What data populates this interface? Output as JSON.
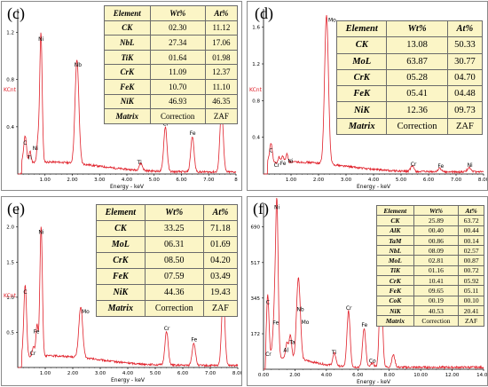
{
  "chart_data": [
    {
      "id": "c",
      "type": "line",
      "panel_label": "(c)",
      "y_unit_label": "KCnt",
      "xlabel": "Energy - keV",
      "xlim": [
        0,
        8.0
      ],
      "ylim": [
        0,
        1.4
      ],
      "x_ticks": [
        "1.00",
        "2.00",
        "3.00",
        "4.00",
        "5.00",
        "6.00",
        "7.00",
        "8"
      ],
      "y_ticks": [
        "0.4",
        "0.8",
        "1.2"
      ],
      "y_tick_values": [
        0.4,
        0.8,
        1.2
      ],
      "peaks": [
        {
          "label": "C",
          "x": 0.27,
          "y": 0.22,
          "w": 0.05
        },
        {
          "label": "Ti",
          "x": 0.45,
          "y": 0.1,
          "w": 0.04
        },
        {
          "label": "Ni",
          "x": 0.85,
          "y": 1.1,
          "w": 0.045
        },
        {
          "label": "Ni",
          "x": 0.74,
          "y": 0.18,
          "w": 0.04
        },
        {
          "label": "Nb",
          "x": 2.17,
          "y": 0.88,
          "w": 0.07
        },
        {
          "label": "Ti",
          "x": 4.51,
          "y": 0.06,
          "w": 0.06
        },
        {
          "label": "Cr",
          "x": 5.41,
          "y": 0.38,
          "w": 0.06
        },
        {
          "label": "Fe",
          "x": 6.4,
          "y": 0.3,
          "w": 0.06
        },
        {
          "label": "Ni",
          "x": 7.47,
          "y": 0.55,
          "w": 0.06
        }
      ],
      "table": {
        "headers": [
          "Element",
          "Wt%",
          "At%"
        ],
        "rows": [
          [
            "CK",
            "02.30",
            "11.12"
          ],
          [
            "NbL",
            "27.34",
            "17.06"
          ],
          [
            "TiK",
            "01.64",
            "01.98"
          ],
          [
            "CrK",
            "11.09",
            "12.37"
          ],
          [
            "FeK",
            "10.70",
            "11.10"
          ],
          [
            "NiK",
            "46.93",
            "46.35"
          ],
          [
            "Matrix",
            "Correction",
            "ZAF"
          ]
        ]
      }
    },
    {
      "id": "d",
      "type": "line",
      "panel_label": "(d)",
      "y_unit_label": "KCnt",
      "xlabel": "Energy - keV",
      "xlim": [
        0,
        8.0
      ],
      "ylim": [
        0,
        1.8
      ],
      "x_ticks": [
        "1.00",
        "2.00",
        "3.00",
        "4.00",
        "5.00",
        "6.00",
        "7.00",
        "8.00"
      ],
      "y_ticks": [
        "0.4",
        "0.8",
        "1.2",
        "1.6"
      ],
      "y_tick_values": [
        0.4,
        0.8,
        1.2,
        1.6
      ],
      "peaks": [
        {
          "label": "C",
          "x": 0.27,
          "y": 0.2,
          "w": 0.05
        },
        {
          "label": "Cr",
          "x": 0.57,
          "y": 0.06,
          "w": 0.04
        },
        {
          "label": "Fe",
          "x": 0.7,
          "y": 0.07,
          "w": 0.04
        },
        {
          "label": "Ni",
          "x": 0.85,
          "y": 0.09,
          "w": 0.04
        },
        {
          "label": "Mo",
          "x": 2.29,
          "y": 1.62,
          "w": 0.07
        },
        {
          "label": "Cr",
          "x": 5.41,
          "y": 0.06,
          "w": 0.06
        },
        {
          "label": "Fe",
          "x": 6.4,
          "y": 0.04,
          "w": 0.06
        },
        {
          "label": "Ni",
          "x": 7.47,
          "y": 0.05,
          "w": 0.06
        }
      ],
      "table": {
        "headers": [
          "Element",
          "Wt%",
          "At%"
        ],
        "rows": [
          [
            "CK",
            "13.08",
            "50.33"
          ],
          [
            "MoL",
            "63.87",
            "30.77"
          ],
          [
            "CrK",
            "05.28",
            "04.70"
          ],
          [
            "FeK",
            "05.41",
            "04.48"
          ],
          [
            "NiK",
            "12.36",
            "09.73"
          ],
          [
            "Matrix",
            "Correction",
            "ZAF"
          ]
        ]
      }
    },
    {
      "id": "e",
      "type": "line",
      "panel_label": "(e)",
      "y_unit_label": "KCnt",
      "xlabel": "Energy - keV",
      "xlim": [
        0,
        8.0
      ],
      "ylim": [
        0,
        2.3
      ],
      "x_ticks": [
        "1.00",
        "2.00",
        "3.00",
        "4.00",
        "5.00",
        "6.00",
        "7.00",
        "8.00"
      ],
      "y_ticks": [
        "0.5",
        "1.0",
        "1.5",
        "2.0"
      ],
      "y_tick_values": [
        0.5,
        1.0,
        1.5,
        2.0
      ],
      "peaks": [
        {
          "label": "C",
          "x": 0.27,
          "y": 1.0,
          "w": 0.05
        },
        {
          "label": "Cr",
          "x": 0.57,
          "y": 0.15,
          "w": 0.04
        },
        {
          "label": "Fe",
          "x": 0.7,
          "y": 0.45,
          "w": 0.04
        },
        {
          "label": "Ni",
          "x": 0.85,
          "y": 1.85,
          "w": 0.045
        },
        {
          "label": "Mo",
          "x": 2.29,
          "y": 0.72,
          "w": 0.07
        },
        {
          "label": "Cr",
          "x": 5.41,
          "y": 0.48,
          "w": 0.06
        },
        {
          "label": "Fe",
          "x": 6.4,
          "y": 0.32,
          "w": 0.06
        },
        {
          "label": "Ni",
          "x": 7.47,
          "y": 1.0,
          "w": 0.06
        }
      ],
      "table": {
        "headers": [
          "Element",
          "Wt%",
          "At%"
        ],
        "rows": [
          [
            "CK",
            "33.25",
            "71.18"
          ],
          [
            "MoL",
            "06.31",
            "01.69"
          ],
          [
            "CrK",
            "08.50",
            "04.20"
          ],
          [
            "FeK",
            "07.59",
            "03.49"
          ],
          [
            "NiK",
            "44.36",
            "19.43"
          ],
          [
            "Matrix",
            "Correction",
            "ZAF"
          ]
        ]
      }
    },
    {
      "id": "f",
      "type": "line",
      "panel_label": "(f)",
      "y_unit_label": "",
      "xlabel": "Energy - keV",
      "xlim": [
        0,
        14.0
      ],
      "ylim": [
        0,
        800
      ],
      "x_ticks": [
        "0.00",
        "2.00",
        "4.00",
        "6.00",
        "8.00",
        "10.00",
        "12.00",
        "14.00"
      ],
      "y_ticks": [
        "172",
        "345",
        "517",
        "690"
      ],
      "y_tick_values": [
        172,
        345,
        517,
        690
      ],
      "peaks": [
        {
          "label": "C",
          "x": 0.27,
          "y": 300,
          "w": 0.08
        },
        {
          "label": "Cr",
          "x": 0.57,
          "y": 60,
          "w": 0.07
        },
        {
          "label": "Fe",
          "x": 0.7,
          "y": 200,
          "w": 0.07
        },
        {
          "label": "Ni",
          "x": 0.85,
          "y": 760,
          "w": 0.08
        },
        {
          "label": "Al",
          "x": 1.49,
          "y": 70,
          "w": 0.08
        },
        {
          "label": "Ta",
          "x": 1.71,
          "y": 110,
          "w": 0.08
        },
        {
          "label": "Mo",
          "x": 2.29,
          "y": 210,
          "w": 0.1
        },
        {
          "label": "Nb",
          "x": 2.17,
          "y": 260,
          "w": 0.1
        },
        {
          "label": "Ti",
          "x": 4.51,
          "y": 60,
          "w": 0.1
        },
        {
          "label": "Cr",
          "x": 5.41,
          "y": 270,
          "w": 0.1
        },
        {
          "label": "Fe",
          "x": 6.4,
          "y": 190,
          "w": 0.1
        },
        {
          "label": "Co",
          "x": 6.93,
          "y": 20,
          "w": 0.1
        },
        {
          "label": "Ni",
          "x": 7.47,
          "y": 420,
          "w": 0.1
        },
        {
          "label": "",
          "x": 8.26,
          "y": 60,
          "w": 0.1
        }
      ],
      "table": {
        "headers": [
          "Element",
          "Wt%",
          "At%"
        ],
        "rows": [
          [
            "CK",
            "25.89",
            "63.72"
          ],
          [
            "AlK",
            "00.40",
            "00.44"
          ],
          [
            "TaM",
            "00.86",
            "00.14"
          ],
          [
            "NbL",
            "08.09",
            "02.57"
          ],
          [
            "MoL",
            "02.81",
            "00.87"
          ],
          [
            "TiK",
            "01.16",
            "00.72"
          ],
          [
            "CrK",
            "10.41",
            "05.92"
          ],
          [
            "FeK",
            "09.65",
            "05.11"
          ],
          [
            "CoK",
            "00.19",
            "00.10"
          ],
          [
            "NiK",
            "40.53",
            "20.41"
          ],
          [
            "Matrix",
            "Correction",
            "ZAF"
          ]
        ]
      }
    }
  ],
  "colors": {
    "spectrum": "#e0202a",
    "table_fill": "#fbf5c6",
    "axis": "#000000"
  }
}
